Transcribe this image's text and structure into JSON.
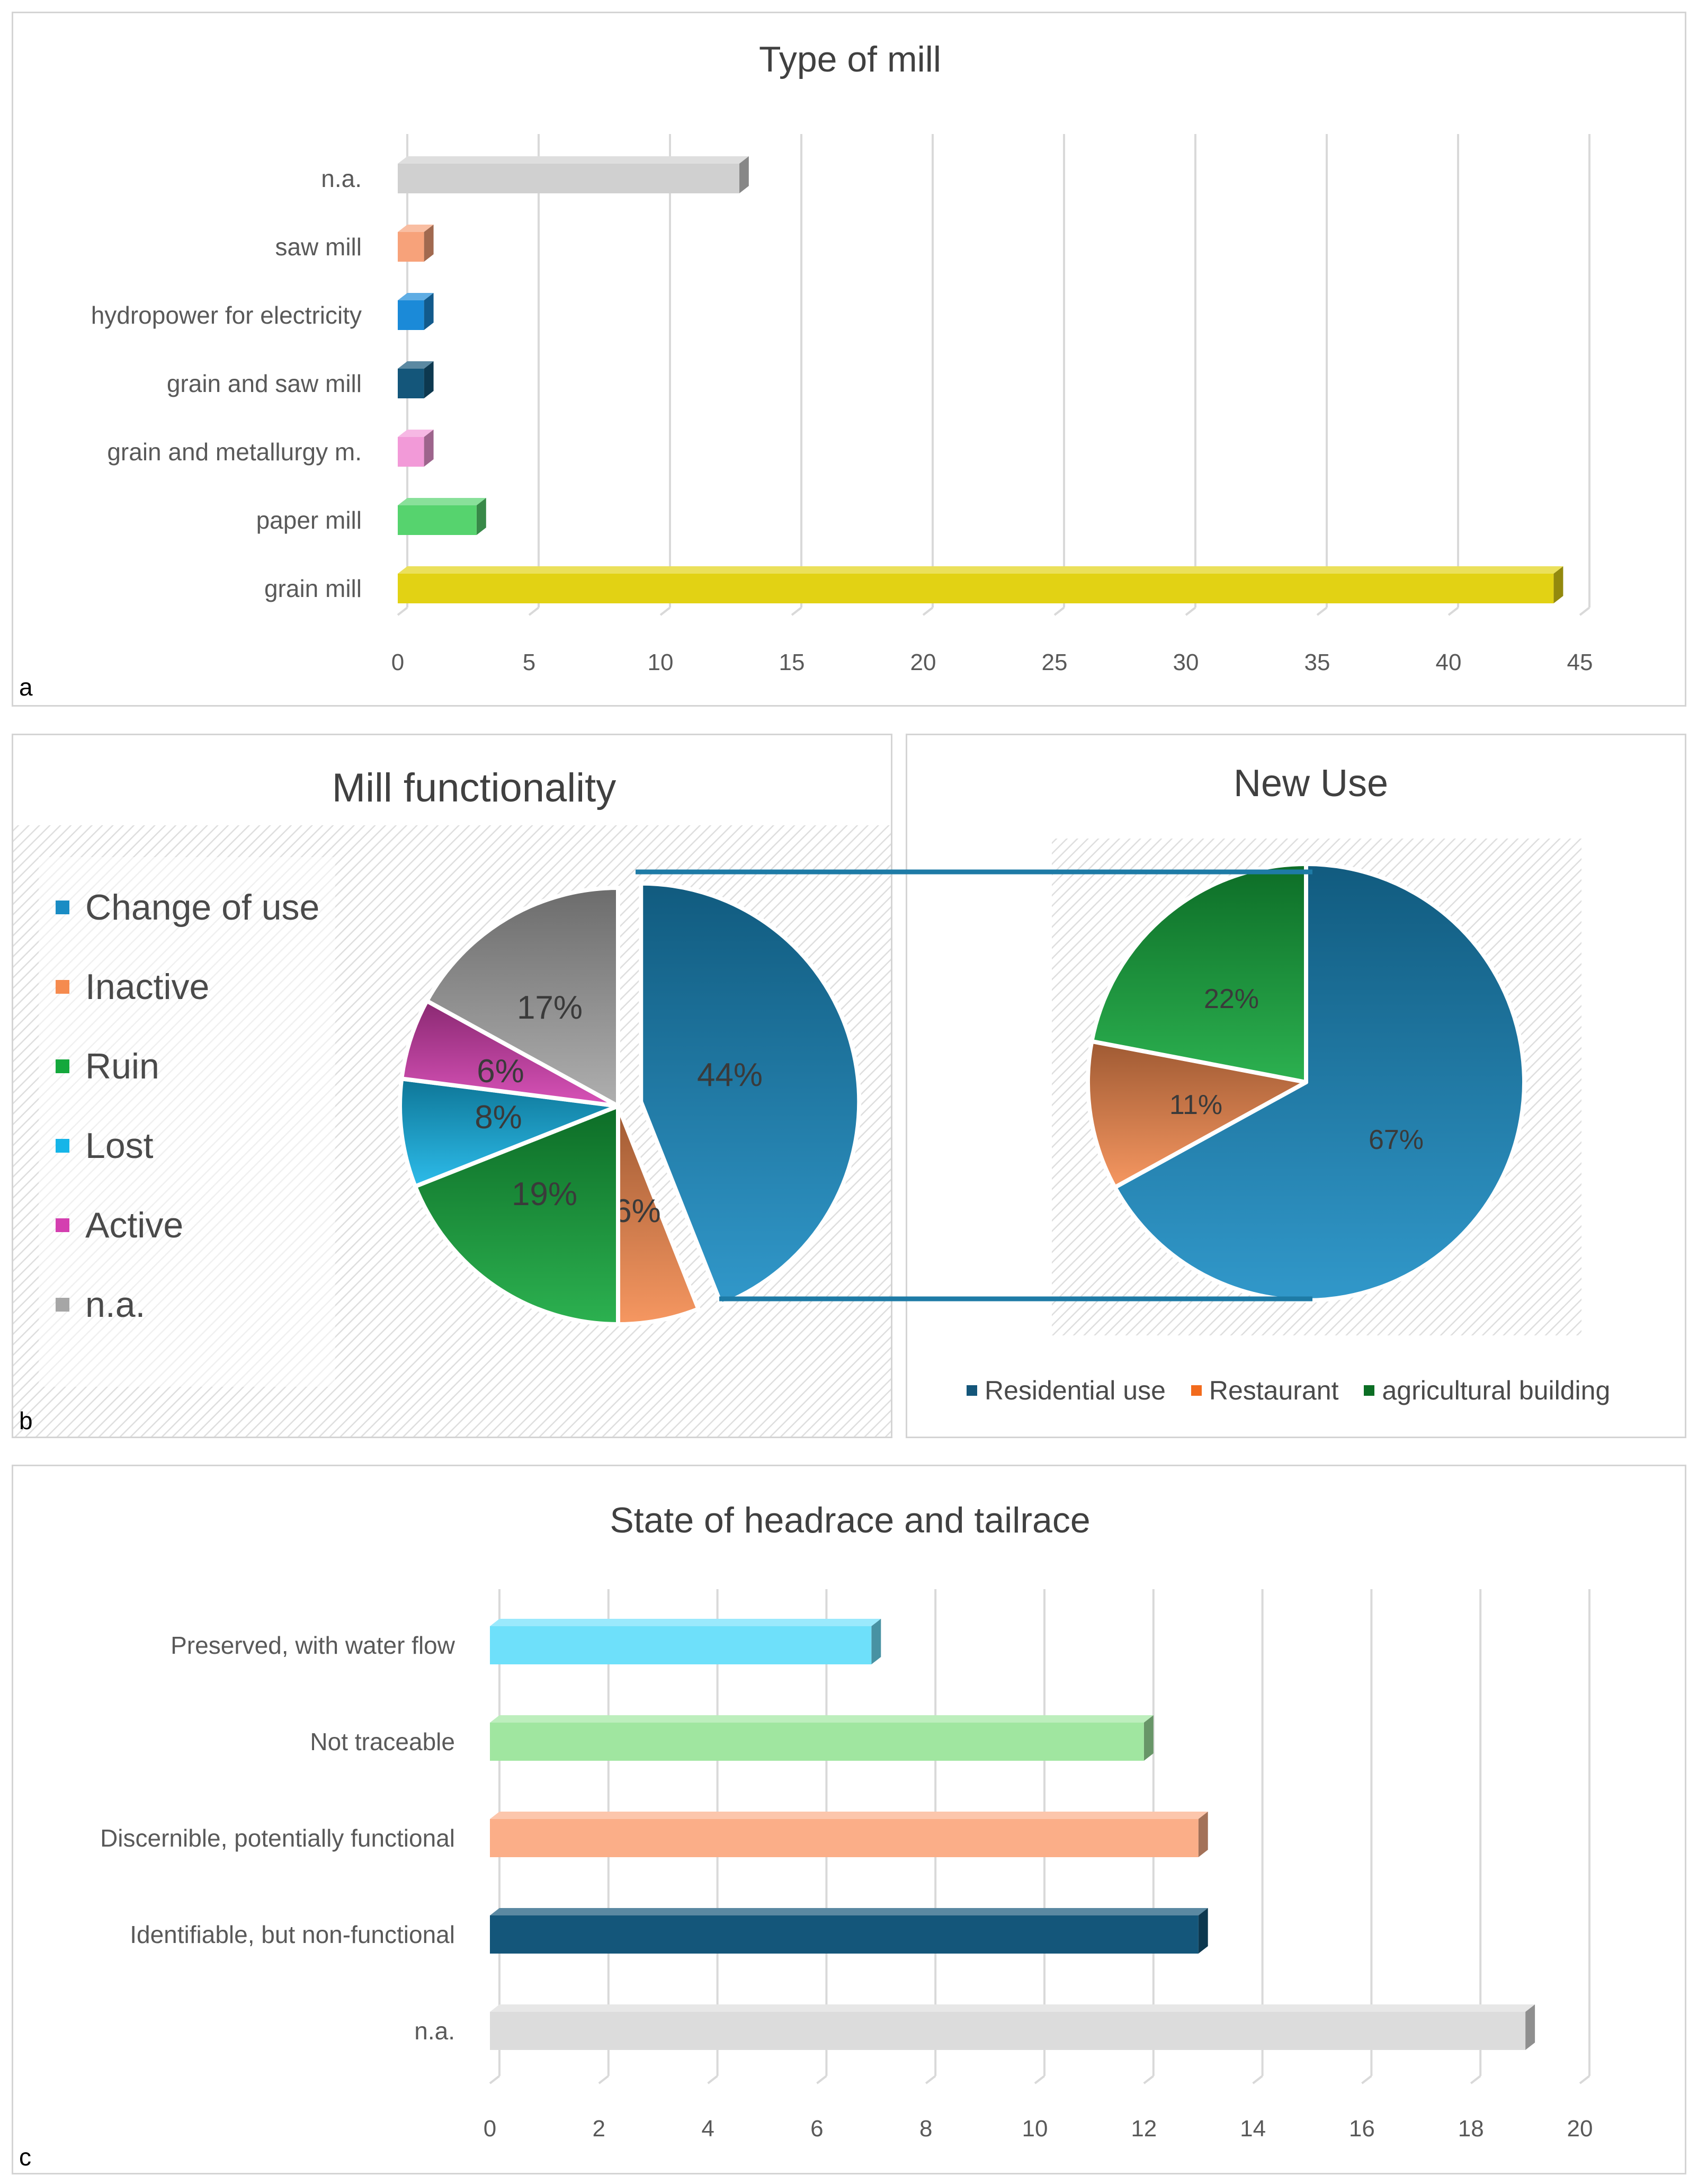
{
  "colors": {
    "grid": "#d9d9d9",
    "axis_text": "#595959",
    "title_text": "#404040",
    "connector": "#1e7ba6"
  },
  "panel_letters": [
    "a",
    "b",
    "c"
  ],
  "chart_data": [
    {
      "id": "type-of-mill",
      "type": "bar",
      "orientation": "horizontal",
      "title": "Type of mill",
      "categories": [
        "n.a.",
        "saw mill",
        "hydropower for electricity",
        "grain and saw mill",
        "grain and metallurgy m.",
        "paper mill",
        "grain mill"
      ],
      "values": [
        13,
        1,
        1,
        1,
        1,
        3,
        44
      ],
      "bar_colors": [
        "#d0d0d0",
        "#f7a27a",
        "#1b8ad8",
        "#14567a",
        "#f29ad8",
        "#56d36e",
        "#e2d214"
      ],
      "xlim": [
        0,
        45
      ],
      "xticks": [
        0,
        5,
        10,
        15,
        20,
        25,
        30,
        35,
        40,
        45
      ],
      "xlabel": "",
      "ylabel": "",
      "grid": true,
      "legend": "none"
    },
    {
      "id": "mill-functionality",
      "type": "pie",
      "title": "Mill functionality",
      "labels": [
        "Change of use",
        "Inactive",
        "Ruin",
        "Lost",
        "Active",
        "n.a."
      ],
      "values": [
        44,
        6,
        19,
        8,
        6,
        17
      ],
      "data_labels": [
        "44%",
        "6%",
        "19%",
        "8%",
        "6%",
        "17%"
      ],
      "colors": [
        "#1a8cc4",
        "#f58b4f",
        "#14a83c",
        "#16b5e8",
        "#d43fb0",
        "#a6a6a6"
      ],
      "exploded_slice": "Change of use",
      "legend": "left"
    },
    {
      "id": "new-use",
      "type": "pie",
      "title": "New Use",
      "labels": [
        "Residential use",
        "Restaurant",
        "agricultural building"
      ],
      "values": [
        67,
        11,
        22
      ],
      "data_labels": [
        "67%",
        "11%",
        "22%"
      ],
      "colors": [
        "#1a8cc4",
        "#f58b4f",
        "#14a83c"
      ],
      "legend_colors": [
        "#14567a",
        "#f26b1d",
        "#0b6e24"
      ],
      "legend": "bottom"
    },
    {
      "id": "state-of-headrace",
      "type": "bar",
      "orientation": "horizontal",
      "title": "State of headrace and tailrace",
      "categories": [
        "Preserved, with water flow",
        "Not traceable",
        "Discernible, potentially functional",
        "Identifiable, but non-functional",
        "n.a."
      ],
      "values": [
        7,
        12,
        13,
        13,
        19
      ],
      "bar_colors": [
        "#6ee0fa",
        "#a0e6a0",
        "#fbae88",
        "#14567a",
        "#dcdcdc"
      ],
      "xlim": [
        0,
        20
      ],
      "xticks": [
        0,
        2,
        4,
        6,
        8,
        10,
        12,
        14,
        16,
        18,
        20
      ],
      "xlabel": "",
      "ylabel": "",
      "grid": true,
      "legend": "none"
    }
  ]
}
